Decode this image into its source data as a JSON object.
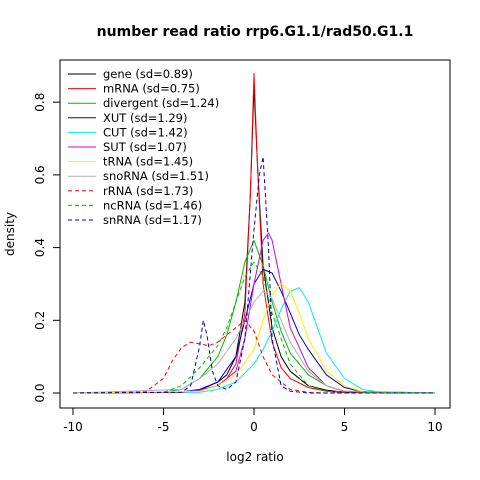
{
  "chart_data": {
    "type": "line",
    "title": "number read ratio rrp6.G1.1/rad50.G1.1",
    "xlabel": "log2 ratio",
    "ylabel": "density",
    "xlim": [
      -10,
      10
    ],
    "ylim": [
      0,
      0.9
    ],
    "x_ticks": [
      -10,
      -5,
      0,
      5,
      10
    ],
    "y_ticks": [
      0.0,
      0.2,
      0.4,
      0.6,
      0.8
    ],
    "x_tick_labels": [
      "-10",
      "-5",
      "0",
      "5",
      "10"
    ],
    "y_tick_labels": [
      "0.0",
      "0.2",
      "0.4",
      "0.6",
      "0.8"
    ],
    "grid": false,
    "legend_position": "top-left",
    "series": [
      {
        "name": "gene (sd=0.89)",
        "color": "#000000",
        "dash": "solid",
        "x": [
          -10,
          -4,
          -3,
          -2,
          -1.5,
          -1,
          -0.5,
          -0.2,
          0,
          0.2,
          0.5,
          1,
          1.5,
          2,
          3,
          4,
          5,
          10
        ],
        "y": [
          0,
          0.002,
          0.008,
          0.03,
          0.05,
          0.1,
          0.25,
          0.55,
          0.84,
          0.62,
          0.35,
          0.18,
          0.1,
          0.06,
          0.02,
          0.008,
          0.002,
          0
        ]
      },
      {
        "name": "mRNA (sd=0.75)",
        "color": "#ff0000",
        "dash": "solid",
        "x": [
          -10,
          -4,
          -3,
          -2,
          -1.5,
          -1,
          -0.5,
          -0.2,
          0,
          0.2,
          0.5,
          1,
          1.5,
          2,
          3,
          4,
          5,
          10
        ],
        "y": [
          0,
          0.002,
          0.006,
          0.02,
          0.04,
          0.08,
          0.22,
          0.55,
          0.88,
          0.62,
          0.3,
          0.14,
          0.07,
          0.04,
          0.015,
          0.005,
          0.001,
          0
        ]
      },
      {
        "name": "divergent (sd=1.24)",
        "color": "#00bb00",
        "dash": "solid",
        "x": [
          -10,
          -5,
          -4,
          -3,
          -2,
          -1.5,
          -1,
          -0.5,
          0,
          0.5,
          1,
          1.5,
          2,
          3,
          4,
          5,
          10
        ],
        "y": [
          0,
          0.002,
          0.01,
          0.04,
          0.1,
          0.16,
          0.25,
          0.36,
          0.42,
          0.35,
          0.25,
          0.17,
          0.11,
          0.05,
          0.02,
          0.005,
          0
        ]
      },
      {
        "name": "XUT (sd=1.29)",
        "color": "#0000cc",
        "dash": "solid",
        "x": [
          -10,
          -4,
          -3,
          -2,
          -1,
          -0.5,
          0,
          0.5,
          1,
          1.5,
          2,
          2.5,
          3,
          4,
          5,
          6,
          10
        ],
        "y": [
          0,
          0.003,
          0.01,
          0.03,
          0.1,
          0.2,
          0.3,
          0.34,
          0.33,
          0.28,
          0.22,
          0.16,
          0.12,
          0.05,
          0.015,
          0.003,
          0
        ]
      },
      {
        "name": "CUT (sd=1.42)",
        "color": "#00eeee",
        "dash": "solid",
        "x": [
          -10,
          -3,
          -2,
          -1,
          0,
          0.5,
          1,
          1.5,
          2,
          2.5,
          3,
          3.5,
          4,
          5,
          6,
          7,
          10
        ],
        "y": [
          0,
          0.002,
          0.01,
          0.03,
          0.08,
          0.12,
          0.17,
          0.23,
          0.28,
          0.29,
          0.25,
          0.18,
          0.11,
          0.04,
          0.01,
          0.002,
          0
        ]
      },
      {
        "name": "SUT (sd=1.07)",
        "color": "#dd00dd",
        "dash": "solid",
        "x": [
          -10,
          -4,
          -3,
          -2,
          -1,
          -0.5,
          0,
          0.5,
          0.8,
          1,
          1.5,
          2,
          3,
          4,
          5,
          10
        ],
        "y": [
          0,
          0.002,
          0.008,
          0.02,
          0.06,
          0.15,
          0.3,
          0.42,
          0.44,
          0.42,
          0.3,
          0.18,
          0.07,
          0.02,
          0.004,
          0
        ]
      },
      {
        "name": "tRNA (sd=1.45)",
        "color": "#ffee00",
        "dash": "solid",
        "x": [
          -10,
          -3,
          -2,
          -1,
          0,
          0.5,
          1,
          1.5,
          2,
          2.5,
          3,
          4,
          5,
          6,
          10
        ],
        "y": [
          0,
          0.005,
          0.02,
          0.05,
          0.12,
          0.2,
          0.27,
          0.3,
          0.28,
          0.22,
          0.15,
          0.06,
          0.02,
          0.003,
          0
        ]
      },
      {
        "name": "snoRNA (sd=1.51)",
        "color": "#b0b0b0",
        "dash": "solid",
        "x": [
          -10,
          -4,
          -3,
          -2,
          -1,
          0,
          0.5,
          1,
          1.5,
          2,
          3,
          4,
          5,
          10
        ],
        "y": [
          0,
          0.01,
          0.04,
          0.08,
          0.15,
          0.25,
          0.28,
          0.26,
          0.2,
          0.14,
          0.06,
          0.02,
          0.005,
          0
        ]
      },
      {
        "name": "rRNA (sd=1.73)",
        "color": "#ff0000",
        "dash": "dashed",
        "x": [
          -10,
          -6,
          -5,
          -4.5,
          -4,
          -3.5,
          -3,
          -2.5,
          -2,
          -1,
          -0.5,
          0,
          0.5,
          1,
          2,
          3,
          4,
          10
        ],
        "y": [
          0,
          0.003,
          0.04,
          0.09,
          0.125,
          0.14,
          0.135,
          0.13,
          0.14,
          0.18,
          0.2,
          0.17,
          0.1,
          0.05,
          0.01,
          0.002,
          0,
          0
        ]
      },
      {
        "name": "ncRNA (sd=1.46)",
        "color": "#00bb00",
        "dash": "dashed",
        "x": [
          -10,
          -5,
          -4,
          -3,
          -2.5,
          -2,
          -1.5,
          -1,
          -0.5,
          0,
          0.5,
          1,
          2,
          3,
          4,
          10
        ],
        "y": [
          0,
          0.002,
          0.02,
          0.07,
          0.1,
          0.13,
          0.18,
          0.25,
          0.32,
          0.36,
          0.32,
          0.22,
          0.08,
          0.02,
          0.004,
          0
        ]
      },
      {
        "name": "snRNA (sd=1.17)",
        "color": "#0000cc",
        "dash": "dashed",
        "x": [
          -10,
          -4,
          -3.5,
          -3,
          -2.8,
          -2.6,
          -2.3,
          -2,
          -1.5,
          -1,
          -0.5,
          0,
          0.3,
          0.5,
          0.8,
          1,
          1.5,
          2,
          3,
          10
        ],
        "y": [
          0,
          0.002,
          0.02,
          0.13,
          0.2,
          0.16,
          0.06,
          0.02,
          0.01,
          0.03,
          0.15,
          0.45,
          0.6,
          0.65,
          0.4,
          0.15,
          0.02,
          0.005,
          0,
          0
        ]
      }
    ]
  }
}
